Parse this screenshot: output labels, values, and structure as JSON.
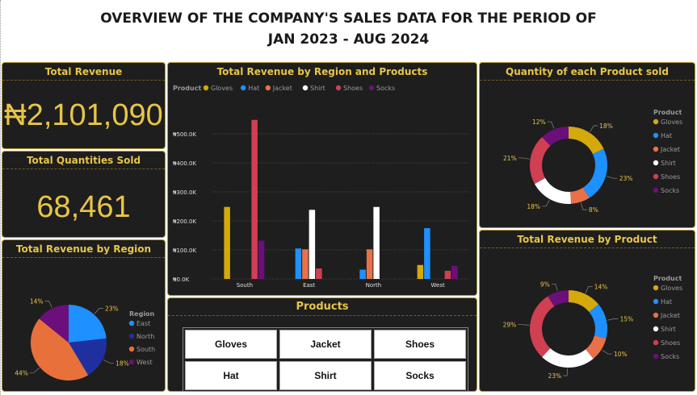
{
  "header": {
    "title_line1": "OVERVIEW OF THE COMPANY'S SALES DATA FOR THE PERIOD OF",
    "title_line2": "JAN 2023 - AUG 2024"
  },
  "kpis": {
    "revenue_title": "Total Revenue",
    "revenue_value": "₦2,101,090",
    "qty_title": "Total Quantities Sold",
    "qty_value": "68,461"
  },
  "colors": {
    "Gloves": "#d4a90c",
    "Hat": "#1e90ff",
    "Jacket": "#e8714a",
    "Shirt": "#ffffff",
    "Shoes": "#d13f52",
    "Socks": "#6b0f7a",
    "East": "#1e90ff",
    "North": "#1f2fa0",
    "South": "#e8713b",
    "West": "#6b0f7a"
  },
  "products_panel": {
    "title": "Products",
    "buttons": [
      "Gloves",
      "Jacket",
      "Shoes",
      "Hat",
      "Shirt",
      "Socks"
    ]
  },
  "chart_data": [
    {
      "id": "region_pie",
      "type": "pie",
      "title": "Total Revenue by Region",
      "legend_title": "Region",
      "legend_position": "right",
      "labels": [
        "East",
        "North",
        "South",
        "West"
      ],
      "values": [
        23,
        18,
        44,
        14
      ],
      "value_labels": [
        "23%",
        "18%",
        "44%",
        "14%"
      ]
    },
    {
      "id": "region_product_bar",
      "type": "bar",
      "title": "Total Revenue by Region and Products",
      "legend_title": "Product",
      "legend_position": "top-left",
      "categories": [
        "South",
        "East",
        "North",
        "West"
      ],
      "y_ticks": [
        "₦0.0K",
        "₦100.0K",
        "₦200.0K",
        "₦300.0K",
        "₦400.0K",
        "₦500.0K"
      ],
      "ylim": [
        0,
        550000
      ],
      "grid": true,
      "series": [
        {
          "name": "Gloves",
          "values": [
            248000,
            0,
            0,
            48000
          ]
        },
        {
          "name": "Hat",
          "values": [
            0,
            105000,
            32000,
            175000
          ]
        },
        {
          "name": "Jacket",
          "values": [
            0,
            102000,
            102000,
            0
          ]
        },
        {
          "name": "Shirt",
          "values": [
            0,
            238000,
            248000,
            0
          ]
        },
        {
          "name": "Shoes",
          "values": [
            548000,
            36000,
            0,
            28000
          ]
        },
        {
          "name": "Socks",
          "values": [
            132000,
            0,
            0,
            45000
          ]
        }
      ]
    },
    {
      "id": "qty_donut",
      "type": "pie",
      "title": "Quantity of each Product sold",
      "legend_title": "Product",
      "legend_position": "right",
      "labels": [
        "Gloves",
        "Hat",
        "Jacket",
        "Shirt",
        "Shoes",
        "Socks"
      ],
      "values": [
        18,
        23,
        8,
        18,
        21,
        12
      ],
      "value_labels": [
        "18%",
        "23%",
        "8%",
        "18%",
        "21%",
        "12%"
      ]
    },
    {
      "id": "revenue_donut",
      "type": "pie",
      "title": "Total Revenue by Product",
      "legend_title": "Product",
      "legend_position": "right",
      "labels": [
        "Gloves",
        "Hat",
        "Jacket",
        "Shirt",
        "Shoes",
        "Socks"
      ],
      "values": [
        14,
        15,
        10,
        23,
        29,
        9
      ],
      "value_labels": [
        "14%",
        "15%",
        "10%",
        "23%",
        "29%",
        "9%"
      ]
    }
  ]
}
